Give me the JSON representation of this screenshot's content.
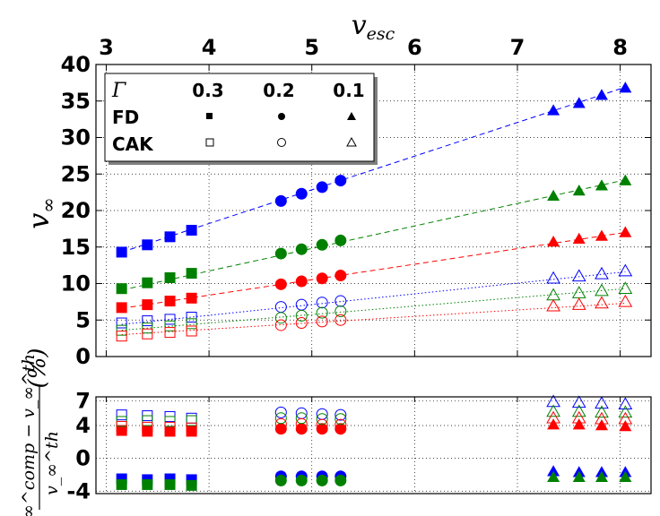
{
  "chart_data": [
    {
      "type": "scatter",
      "panel": "main",
      "xlabel": "v_esc",
      "ylabel": "v_∞",
      "xlim": [
        2.9,
        8.3
      ],
      "ylim": [
        0,
        40
      ],
      "x_ticks": [
        3,
        4,
        5,
        6,
        7,
        8
      ],
      "y_ticks": [
        0,
        5,
        10,
        15,
        20,
        25,
        30,
        35,
        40
      ],
      "grid": true,
      "legend": {
        "position": "top-left",
        "header_symbol": "Γ",
        "columns": [
          "0.3",
          "0.2",
          "0.1"
        ],
        "rows": [
          "FD",
          "CAK"
        ],
        "filled_row": "FD",
        "open_row": "CAK"
      },
      "gamma_markers": {
        "0.3": "square",
        "0.2": "circle",
        "0.1": "triangle"
      },
      "colors": {
        "blue": "#0000ff",
        "green": "#008000",
        "red": "#ff0000"
      },
      "groups": [
        {
          "gamma": "0.3",
          "x": [
            3.15,
            3.4,
            3.62,
            3.83
          ]
        },
        {
          "gamma": "0.2",
          "x": [
            4.7,
            4.9,
            5.1,
            5.28
          ]
        },
        {
          "gamma": "0.1",
          "x": [
            7.35,
            7.6,
            7.82,
            8.05
          ]
        }
      ],
      "series": [
        {
          "name": "FD blue",
          "model": "FD",
          "color": "blue",
          "values": {
            "0.3": [
              14.3,
              15.3,
              16.4,
              17.3
            ],
            "0.2": [
              21.3,
              22.3,
              23.2,
              24.1
            ],
            "0.1": [
              33.7,
              34.7,
              35.8,
              36.8
            ]
          }
        },
        {
          "name": "FD green",
          "model": "FD",
          "color": "green",
          "values": {
            "0.3": [
              9.3,
              10.1,
              10.8,
              11.4
            ],
            "0.2": [
              14.1,
              14.7,
              15.3,
              15.9
            ],
            "0.1": [
              22.0,
              22.7,
              23.4,
              24.1
            ]
          }
        },
        {
          "name": "FD red",
          "model": "FD",
          "color": "red",
          "values": {
            "0.3": [
              6.7,
              7.1,
              7.6,
              8.0
            ],
            "0.2": [
              9.9,
              10.3,
              10.7,
              11.1
            ],
            "0.1": [
              15.7,
              16.1,
              16.5,
              17.0
            ]
          }
        },
        {
          "name": "CAK blue",
          "model": "CAK",
          "color": "blue",
          "values": {
            "0.3": [
              4.6,
              4.9,
              5.1,
              5.4
            ],
            "0.2": [
              6.8,
              7.1,
              7.4,
              7.6
            ],
            "0.1": [
              10.7,
              11.0,
              11.3,
              11.7
            ]
          }
        },
        {
          "name": "CAK green",
          "model": "CAK",
          "color": "green",
          "values": {
            "0.3": [
              3.6,
              3.9,
              4.2,
              4.5
            ],
            "0.2": [
              5.3,
              5.6,
              6.0,
              6.2
            ],
            "0.1": [
              8.4,
              8.7,
              9.0,
              9.3
            ]
          }
        },
        {
          "name": "CAK red",
          "model": "CAK",
          "color": "red",
          "values": {
            "0.3": [
              2.8,
              3.1,
              3.3,
              3.5
            ],
            "0.2": [
              4.3,
              4.6,
              4.8,
              5.0
            ],
            "0.1": [
              6.9,
              7.1,
              7.3,
              7.5
            ]
          }
        }
      ],
      "fit_lines": [
        {
          "model": "FD",
          "color": "blue",
          "style": "dashed",
          "x": [
            3.15,
            8.05
          ],
          "y": [
            14.3,
            36.9
          ]
        },
        {
          "model": "FD",
          "color": "green",
          "style": "dashed",
          "x": [
            3.15,
            8.05
          ],
          "y": [
            9.1,
            24.2
          ]
        },
        {
          "model": "FD",
          "color": "red",
          "style": "dashed",
          "x": [
            3.15,
            8.05
          ],
          "y": [
            6.6,
            17.0
          ]
        },
        {
          "model": "CAK",
          "color": "blue",
          "style": "dotted",
          "x": [
            3.15,
            8.05
          ],
          "y": [
            4.4,
            11.6
          ]
        },
        {
          "model": "CAK",
          "color": "green",
          "style": "dotted",
          "x": [
            3.15,
            8.05
          ],
          "y": [
            3.6,
            9.3
          ]
        },
        {
          "model": "CAK",
          "color": "red",
          "style": "dotted",
          "x": [
            3.15,
            8.05
          ],
          "y": [
            3.0,
            7.3
          ]
        }
      ]
    },
    {
      "type": "scatter",
      "panel": "residual",
      "ylabel": "(v_∞^comp − v_∞^th) / v_∞^th (%)",
      "ylim": [
        -4.3,
        7.5
      ],
      "y_ticks": [
        -4,
        0,
        4,
        7
      ],
      "grid": true,
      "series": [
        {
          "name": "FD blue",
          "model": "FD",
          "color": "blue",
          "values": {
            "0.3": [
              -2.5,
              -2.6,
              -2.5,
              -2.6
            ],
            "0.2": [
              -2.2,
              -2.2,
              -2.2,
              -2.2
            ],
            "0.1": [
              -1.6,
              -1.7,
              -1.7,
              -1.7
            ]
          }
        },
        {
          "name": "FD green",
          "model": "FD",
          "color": "green",
          "values": {
            "0.3": [
              -3.2,
              -3.2,
              -3.2,
              -3.3
            ],
            "0.2": [
              -2.7,
              -2.7,
              -2.7,
              -2.7
            ],
            "0.1": [
              -2.3,
              -2.3,
              -2.3,
              -2.3
            ]
          }
        },
        {
          "name": "FD red",
          "model": "FD",
          "color": "red",
          "values": {
            "0.3": [
              3.4,
              3.3,
              3.3,
              3.3
            ],
            "0.2": [
              3.6,
              3.6,
              3.6,
              3.6
            ],
            "0.1": [
              4.1,
              4.1,
              4.0,
              3.9
            ]
          }
        },
        {
          "name": "CAK blue",
          "model": "CAK",
          "color": "blue",
          "values": {
            "0.3": [
              5.3,
              5.2,
              5.1,
              4.9
            ],
            "0.2": [
              5.6,
              5.5,
              5.4,
              5.3
            ],
            "0.1": [
              6.9,
              6.8,
              6.7,
              6.6
            ]
          }
        },
        {
          "name": "CAK green",
          "model": "CAK",
          "color": "green",
          "values": {
            "0.3": [
              4.5,
              4.6,
              4.5,
              4.6
            ],
            "0.2": [
              4.9,
              4.9,
              4.8,
              4.8
            ],
            "0.1": [
              5.7,
              5.7,
              5.6,
              5.6
            ]
          }
        },
        {
          "name": "CAK red",
          "model": "CAK",
          "color": "red",
          "values": {
            "0.3": [
              3.9,
              3.8,
              3.8,
              3.7
            ],
            "0.2": [
              4.2,
              4.2,
              4.1,
              4.1
            ],
            "0.1": [
              4.9,
              4.9,
              4.8,
              4.8
            ]
          }
        }
      ]
    }
  ]
}
